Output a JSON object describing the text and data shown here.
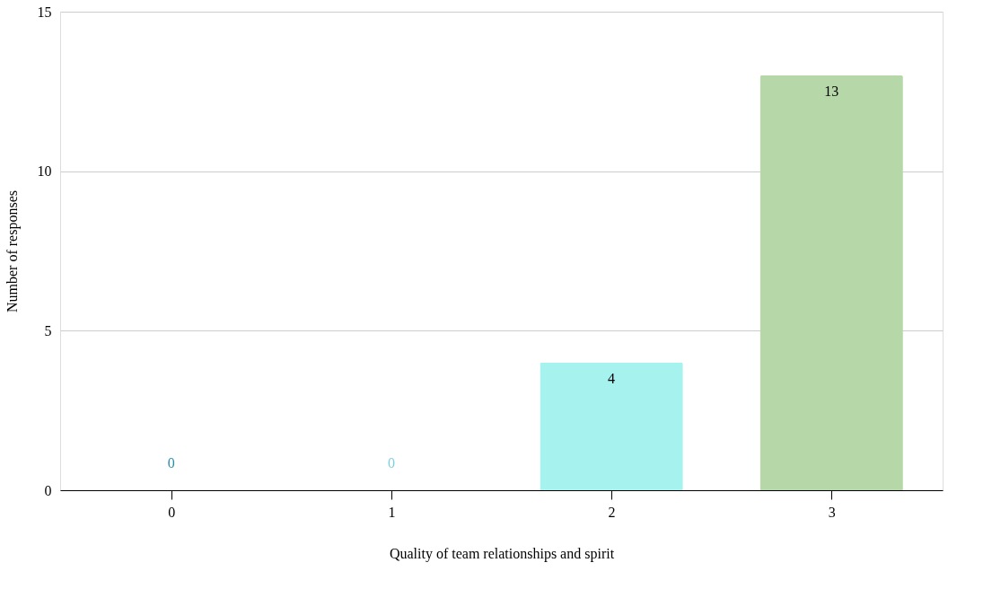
{
  "chart_data": {
    "type": "bar",
    "xlabel": "Quality of team relationships and spirit",
    "ylabel": "Number of responses",
    "categories": [
      "0",
      "1",
      "2",
      "3"
    ],
    "values": [
      0,
      0,
      4,
      13
    ],
    "colors": [
      "#2a8fa3",
      "#7dd0dc",
      "#a5f2ef",
      "#b6d8a8"
    ],
    "ylim": [
      0,
      15
    ],
    "yticks": [
      0,
      5,
      10,
      15
    ],
    "grid": "y",
    "data_labels": true
  }
}
